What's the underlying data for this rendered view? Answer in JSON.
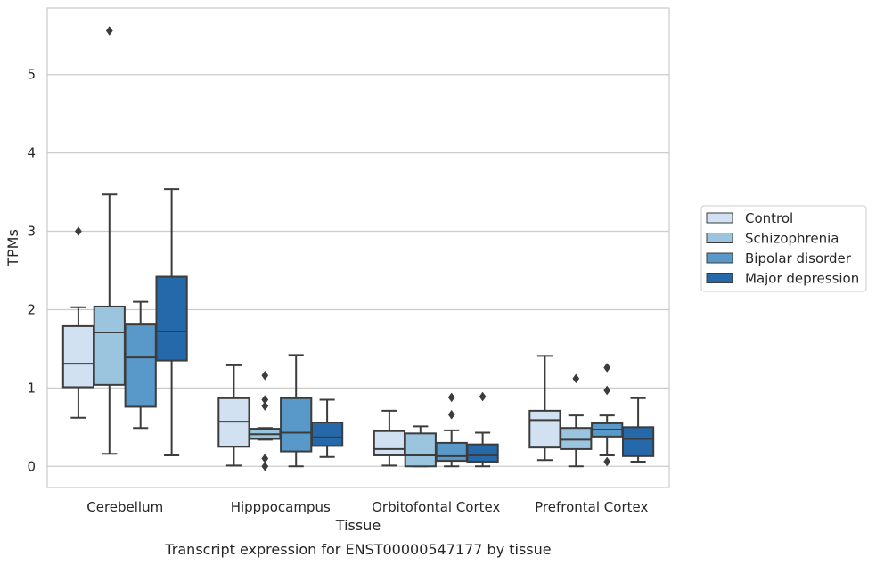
{
  "chart_data": {
    "type": "box",
    "caption": "Transcript expression for ENST00000547177 by tissue",
    "xlabel": "Tissue",
    "ylabel": "TPMs",
    "ylim": [
      -0.27,
      5.85
    ],
    "yticks": [
      0,
      1,
      2,
      3,
      4,
      5
    ],
    "grid": "horizontal",
    "legend_position": "right",
    "categories": [
      "Cerebellum",
      "Hipppocampus",
      "Orbitofontal Cortex",
      "Prefrontal Cortex"
    ],
    "series": [
      {
        "name": "Control",
        "color": "#d1e1f1",
        "boxes": [
          {
            "whislo": 0.62,
            "q1": 1.01,
            "med": 1.31,
            "q3": 1.79,
            "whishi": 2.03,
            "fliers": [
              3.0
            ]
          },
          {
            "whislo": 0.01,
            "q1": 0.25,
            "med": 0.57,
            "q3": 0.87,
            "whishi": 1.29,
            "fliers": []
          },
          {
            "whislo": 0.01,
            "q1": 0.14,
            "med": 0.22,
            "q3": 0.45,
            "whishi": 0.71,
            "fliers": []
          },
          {
            "whislo": 0.08,
            "q1": 0.24,
            "med": 0.59,
            "q3": 0.71,
            "whishi": 1.41,
            "fliers": []
          }
        ]
      },
      {
        "name": "Schizophrenia",
        "color": "#9bc5df",
        "boxes": [
          {
            "whislo": 0.16,
            "q1": 1.04,
            "med": 1.71,
            "q3": 2.04,
            "whishi": 3.47,
            "fliers": [
              5.56
            ]
          },
          {
            "whislo": 0.34,
            "q1": 0.35,
            "med": 0.41,
            "q3": 0.48,
            "whishi": 0.49,
            "fliers": [
              1.16,
              0.85,
              0.77,
              0.1,
              0.0
            ]
          },
          {
            "whislo": 0.0,
            "q1": 0.0,
            "med": 0.14,
            "q3": 0.42,
            "whishi": 0.51,
            "fliers": []
          },
          {
            "whislo": 0.0,
            "q1": 0.22,
            "med": 0.34,
            "q3": 0.49,
            "whishi": 0.65,
            "fliers": [
              1.12
            ]
          }
        ]
      },
      {
        "name": "Bipolar disorder",
        "color": "#5899c9",
        "boxes": [
          {
            "whislo": 0.49,
            "q1": 0.76,
            "med": 1.39,
            "q3": 1.81,
            "whishi": 2.1,
            "fliers": []
          },
          {
            "whislo": 0.0,
            "q1": 0.19,
            "med": 0.43,
            "q3": 0.87,
            "whishi": 1.42,
            "fliers": []
          },
          {
            "whislo": 0.0,
            "q1": 0.07,
            "med": 0.13,
            "q3": 0.3,
            "whishi": 0.46,
            "fliers": [
              0.88,
              0.66
            ]
          },
          {
            "whislo": 0.14,
            "q1": 0.38,
            "med": 0.47,
            "q3": 0.55,
            "whishi": 0.65,
            "fliers": [
              1.26,
              0.97,
              0.06
            ]
          }
        ]
      },
      {
        "name": "Major depression",
        "color": "#2669ab",
        "boxes": [
          {
            "whislo": 0.14,
            "q1": 1.35,
            "med": 1.72,
            "q3": 2.42,
            "whishi": 3.54,
            "fliers": []
          },
          {
            "whislo": 0.12,
            "q1": 0.26,
            "med": 0.37,
            "q3": 0.56,
            "whishi": 0.85,
            "fliers": []
          },
          {
            "whislo": 0.0,
            "q1": 0.06,
            "med": 0.14,
            "q3": 0.28,
            "whishi": 0.43,
            "fliers": [
              0.89
            ]
          },
          {
            "whislo": 0.06,
            "q1": 0.13,
            "med": 0.35,
            "q3": 0.5,
            "whishi": 0.87,
            "fliers": []
          }
        ]
      }
    ]
  }
}
